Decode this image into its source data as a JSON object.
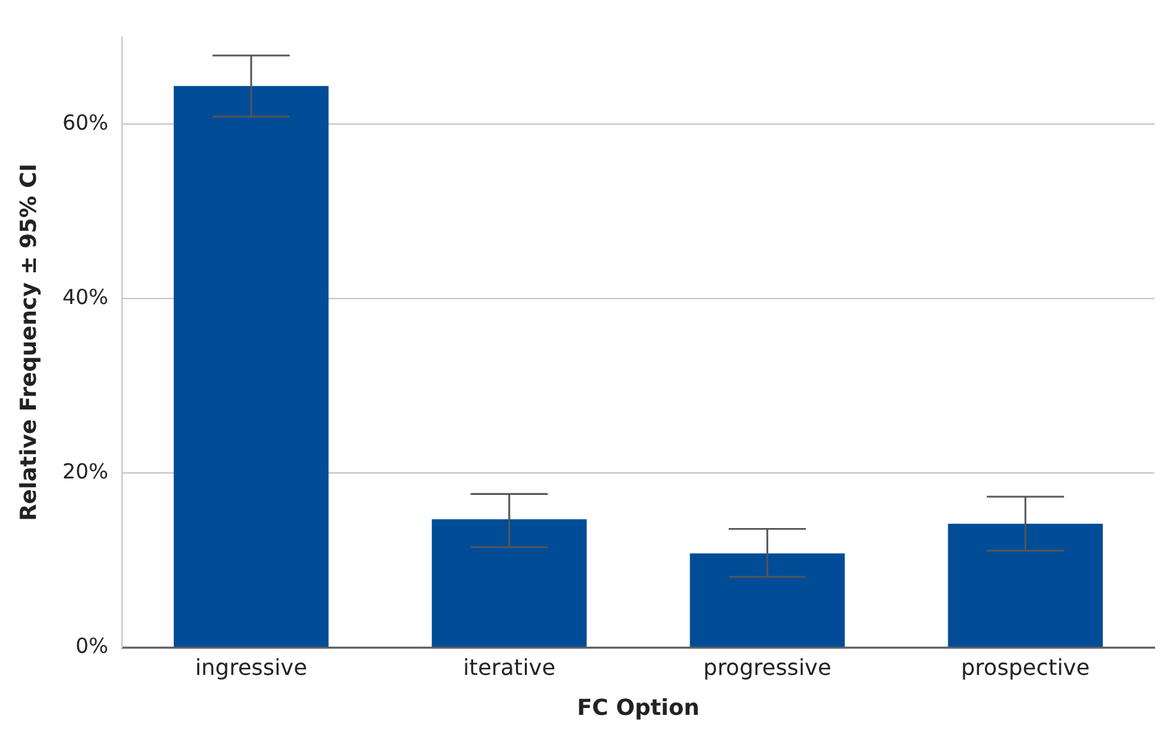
{
  "chart_data": {
    "type": "bar",
    "xlabel": "FC Option",
    "ylabel": "Relative Frequency ± 95% CI",
    "categories": [
      "ingressive",
      "iterative",
      "progressive",
      "prospective"
    ],
    "values": [
      64.4,
      14.7,
      10.8,
      14.2
    ],
    "color": "#004c97",
    "errors": [
      [
        60.9,
        67.9
      ],
      [
        11.5,
        17.6
      ],
      [
        8.1,
        13.6
      ],
      [
        11.1,
        17.3
      ]
    ],
    "ylim": [
      0,
      70
    ],
    "yticks": [
      {
        "value": 0,
        "label": "0%"
      },
      {
        "value": 20,
        "label": "20%"
      },
      {
        "value": 40,
        "label": "40%"
      },
      {
        "value": 60,
        "label": "60%"
      }
    ],
    "grid": "y",
    "legend": false
  }
}
